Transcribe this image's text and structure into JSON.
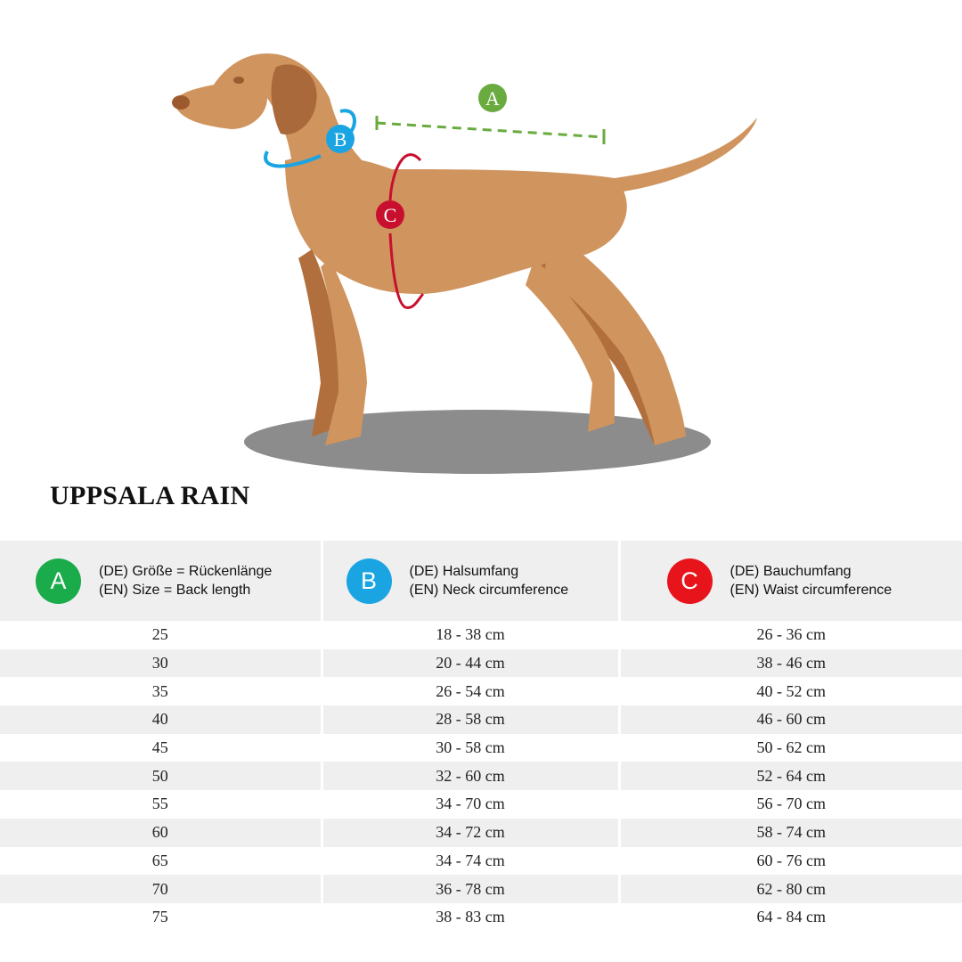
{
  "title": "UPPSALA RAIN",
  "illustration": {
    "markers": {
      "a": "A",
      "b": "B",
      "c": "C"
    }
  },
  "colors": {
    "a": "#1aab4b",
    "b": "#1aa4e2",
    "c": "#e8141c",
    "dog": "#d0945e",
    "shadow": "#8c8c8c"
  },
  "table": {
    "headers": [
      {
        "badge": "A",
        "de": "(DE) Größe = Rückenlänge",
        "en": "(EN) Size = Back length"
      },
      {
        "badge": "B",
        "de": "(DE) Halsumfang",
        "en": "(EN) Neck circumference"
      },
      {
        "badge": "C",
        "de": "(DE) Bauchumfang",
        "en": "(EN) Waist circumference"
      }
    ],
    "rows": [
      [
        "25",
        "18 - 38 cm",
        "26 - 36 cm"
      ],
      [
        "30",
        "20 - 44 cm",
        "38 - 46 cm"
      ],
      [
        "35",
        "26 - 54 cm",
        "40 - 52 cm"
      ],
      [
        "40",
        "28 - 58 cm",
        "46 - 60 cm"
      ],
      [
        "45",
        "30 - 58 cm",
        "50 - 62 cm"
      ],
      [
        "50",
        "32 - 60 cm",
        "52 - 64 cm"
      ],
      [
        "55",
        "34 - 70 cm",
        "56 - 70 cm"
      ],
      [
        "60",
        "34 - 72 cm",
        "58 - 74 cm"
      ],
      [
        "65",
        "34 - 74 cm",
        "60 - 76 cm"
      ],
      [
        "70",
        "36 - 78 cm",
        "62 - 80 cm"
      ],
      [
        "75",
        "38 - 83 cm",
        "64 - 84 cm"
      ]
    ]
  }
}
